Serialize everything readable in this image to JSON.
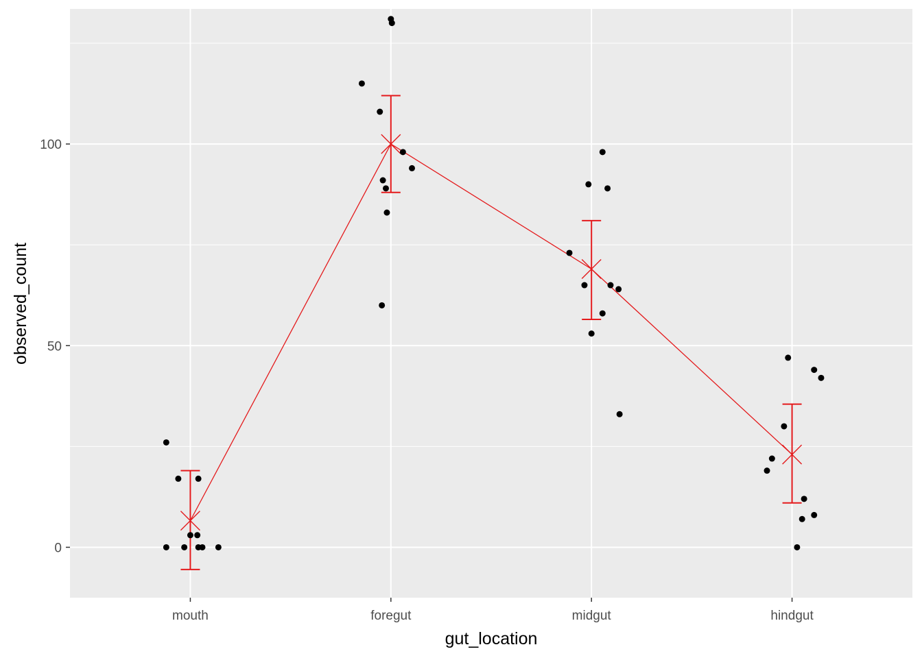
{
  "chart_data": {
    "type": "scatter",
    "xlabel": "gut_location",
    "ylabel": "observed_count",
    "categories": [
      "mouth",
      "foregut",
      "midgut",
      "hindgut"
    ],
    "ylim": [
      -12.5,
      133.5
    ],
    "y_ticks": [
      0,
      50,
      100
    ],
    "y_tick_labels": [
      "0",
      "50",
      "100"
    ],
    "grid": true,
    "background": "#ebebeb",
    "colors": {
      "points": "#000000",
      "summary": "#e41a1c",
      "grid": "#ffffff"
    },
    "points": [
      {
        "category": "mouth",
        "x_offset": -0.12,
        "y": 26
      },
      {
        "category": "mouth",
        "x_offset": -0.06,
        "y": 17
      },
      {
        "category": "mouth",
        "x_offset": 0.04,
        "y": 17
      },
      {
        "category": "mouth",
        "x_offset": 0.0,
        "y": 3
      },
      {
        "category": "mouth",
        "x_offset": 0.035,
        "y": 3
      },
      {
        "category": "mouth",
        "x_offset": -0.12,
        "y": 0
      },
      {
        "category": "mouth",
        "x_offset": -0.03,
        "y": 0
      },
      {
        "category": "mouth",
        "x_offset": 0.04,
        "y": 0
      },
      {
        "category": "mouth",
        "x_offset": 0.06,
        "y": 0
      },
      {
        "category": "mouth",
        "x_offset": 0.14,
        "y": 0
      },
      {
        "category": "foregut",
        "x_offset": 0.0,
        "y": 131
      },
      {
        "category": "foregut",
        "x_offset": 0.005,
        "y": 130
      },
      {
        "category": "foregut",
        "x_offset": -0.145,
        "y": 115
      },
      {
        "category": "foregut",
        "x_offset": -0.055,
        "y": 108
      },
      {
        "category": "foregut",
        "x_offset": 0.06,
        "y": 98
      },
      {
        "category": "foregut",
        "x_offset": 0.105,
        "y": 94
      },
      {
        "category": "foregut",
        "x_offset": -0.04,
        "y": 91
      },
      {
        "category": "foregut",
        "x_offset": -0.025,
        "y": 89
      },
      {
        "category": "foregut",
        "x_offset": -0.02,
        "y": 83
      },
      {
        "category": "foregut",
        "x_offset": -0.045,
        "y": 60
      },
      {
        "category": "midgut",
        "x_offset": 0.055,
        "y": 98
      },
      {
        "category": "midgut",
        "x_offset": -0.015,
        "y": 90
      },
      {
        "category": "midgut",
        "x_offset": 0.08,
        "y": 89
      },
      {
        "category": "midgut",
        "x_offset": -0.11,
        "y": 73
      },
      {
        "category": "midgut",
        "x_offset": -0.035,
        "y": 65
      },
      {
        "category": "midgut",
        "x_offset": 0.095,
        "y": 65
      },
      {
        "category": "midgut",
        "x_offset": 0.135,
        "y": 64
      },
      {
        "category": "midgut",
        "x_offset": 0.055,
        "y": 58
      },
      {
        "category": "midgut",
        "x_offset": 0.0,
        "y": 53
      },
      {
        "category": "midgut",
        "x_offset": 0.14,
        "y": 33
      },
      {
        "category": "hindgut",
        "x_offset": -0.02,
        "y": 47
      },
      {
        "category": "hindgut",
        "x_offset": 0.11,
        "y": 44
      },
      {
        "category": "hindgut",
        "x_offset": 0.145,
        "y": 42
      },
      {
        "category": "hindgut",
        "x_offset": -0.04,
        "y": 30
      },
      {
        "category": "hindgut",
        "x_offset": -0.1,
        "y": 22
      },
      {
        "category": "hindgut",
        "x_offset": -0.125,
        "y": 19
      },
      {
        "category": "hindgut",
        "x_offset": 0.06,
        "y": 12
      },
      {
        "category": "hindgut",
        "x_offset": 0.11,
        "y": 8
      },
      {
        "category": "hindgut",
        "x_offset": 0.05,
        "y": 7
      },
      {
        "category": "hindgut",
        "x_offset": 0.025,
        "y": 0
      }
    ],
    "summary": [
      {
        "category": "mouth",
        "mean": 6.6,
        "lower": -5.5,
        "upper": 19
      },
      {
        "category": "foregut",
        "mean": 100,
        "lower": 88,
        "upper": 112
      },
      {
        "category": "midgut",
        "mean": 69,
        "lower": 56.5,
        "upper": 81
      },
      {
        "category": "hindgut",
        "mean": 23,
        "lower": 11,
        "upper": 35.5
      }
    ]
  }
}
